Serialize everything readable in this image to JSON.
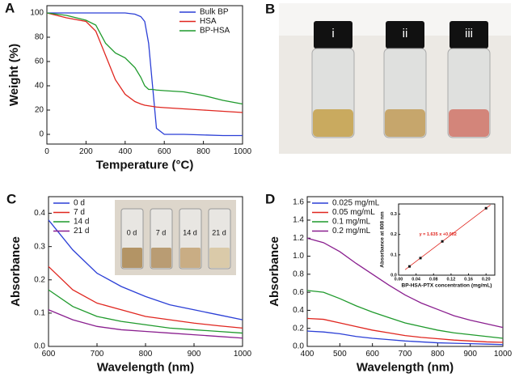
{
  "chart_data": [
    {
      "type": "line",
      "panel": "A",
      "x_label": "Temperature (°C)",
      "y_label": "Weight (%)",
      "x": [
        0,
        100,
        200,
        250,
        300,
        350,
        400,
        450,
        480,
        500,
        520,
        540,
        560,
        600,
        700,
        800,
        900,
        1000
      ],
      "xlim": [
        0,
        1000
      ],
      "xticks": [
        0,
        200,
        400,
        600,
        800,
        1000
      ],
      "ylim": [
        -8,
        106
      ],
      "yticks": [
        0,
        20,
        40,
        60,
        80,
        100
      ],
      "legend": "upper right",
      "series": [
        {
          "name": "Bulk BP",
          "color": "#2b3fd6",
          "values": [
            100,
            100,
            100,
            100,
            100,
            100,
            100,
            99,
            97,
            93,
            75,
            40,
            5,
            0,
            0,
            -0.5,
            -1,
            -1
          ]
        },
        {
          "name": "HSA",
          "color": "#e0261f",
          "values": [
            100,
            96,
            93,
            85,
            65,
            45,
            33,
            27,
            25,
            24,
            23.5,
            23,
            22.5,
            22,
            21,
            20,
            19,
            18
          ]
        },
        {
          "name": "BP-HSA",
          "color": "#1f9a2c",
          "values": [
            100,
            98,
            94,
            90,
            75,
            67,
            63,
            55,
            47,
            40,
            37,
            37,
            36.5,
            36,
            35,
            32,
            28,
            25
          ]
        }
      ]
    },
    {
      "type": "line",
      "panel": "C",
      "x_label": "Wavelength (nm)",
      "y_label": "Absorbance",
      "x": [
        600,
        650,
        700,
        750,
        800,
        850,
        900,
        950,
        1000
      ],
      "xlim": [
        600,
        1000
      ],
      "xticks": [
        600,
        700,
        800,
        900,
        1000
      ],
      "ylim": [
        0,
        0.45
      ],
      "yticks": [
        {
          "value": 0,
          "label": "0.0"
        },
        0.1,
        0.2,
        0.3,
        0.4
      ],
      "legend": "upper left",
      "series": [
        {
          "name": "0 d",
          "color": "#2b3fd6",
          "values": [
            0.38,
            0.29,
            0.22,
            0.18,
            0.15,
            0.125,
            0.11,
            0.095,
            0.08
          ]
        },
        {
          "name": "7 d",
          "color": "#e0261f",
          "values": [
            0.24,
            0.17,
            0.13,
            0.11,
            0.09,
            0.08,
            0.07,
            0.062,
            0.055
          ]
        },
        {
          "name": "14 d",
          "color": "#1f9a2c",
          "values": [
            0.17,
            0.12,
            0.09,
            0.075,
            0.065,
            0.055,
            0.05,
            0.045,
            0.04
          ]
        },
        {
          "name": "21 d",
          "color": "#8a1f8f",
          "values": [
            0.11,
            0.08,
            0.06,
            0.05,
            0.045,
            0.04,
            0.035,
            0.03,
            0.025
          ]
        }
      ]
    },
    {
      "type": "line",
      "panel": "D",
      "x_label": "Wavelength (nm)",
      "y_label": "Absorbance",
      "x": [
        400,
        450,
        500,
        550,
        600,
        650,
        700,
        750,
        800,
        850,
        900,
        950,
        1000
      ],
      "xlim": [
        400,
        1000
      ],
      "xticks": [
        400,
        500,
        600,
        700,
        800,
        900,
        1000
      ],
      "ylim": [
        0,
        1.66
      ],
      "yticks": [
        {
          "value": 0,
          "label": "0.0"
        },
        0.2,
        0.4,
        0.6,
        0.8,
        {
          "value": 1,
          "label": "1.0"
        },
        1.2,
        1.4,
        1.6
      ],
      "legend": "upper left",
      "series": [
        {
          "name": "0.025 mg/mL",
          "color": "#2b3fd6",
          "values": [
            0.17,
            0.16,
            0.14,
            0.11,
            0.09,
            0.075,
            0.06,
            0.05,
            0.04,
            0.035,
            0.03,
            0.025,
            0.02
          ]
        },
        {
          "name": "0.05 mg/mL",
          "color": "#e0261f",
          "values": [
            0.31,
            0.3,
            0.26,
            0.22,
            0.18,
            0.15,
            0.12,
            0.1,
            0.085,
            0.07,
            0.06,
            0.05,
            0.045
          ]
        },
        {
          "name": "0.1 mg/mL",
          "color": "#1f9a2c",
          "values": [
            0.62,
            0.6,
            0.53,
            0.45,
            0.38,
            0.32,
            0.26,
            0.22,
            0.18,
            0.15,
            0.13,
            0.11,
            0.09
          ]
        },
        {
          "name": "0.2 mg/mL",
          "color": "#8a1f8f",
          "values": [
            1.2,
            1.15,
            1.05,
            0.92,
            0.8,
            0.68,
            0.57,
            0.48,
            0.41,
            0.34,
            0.29,
            0.25,
            0.21
          ]
        }
      ]
    },
    {
      "type": "scatter",
      "x_label": "BP-HSA-PTX concentration (mg/mL)",
      "y_label": "Absorbance at 808 nm",
      "annotation": "y = 1.635 x +0.002",
      "x": [
        0.025,
        0.05,
        0.1,
        0.2
      ],
      "values": [
        0.043,
        0.084,
        0.166,
        0.329
      ],
      "color": "#111111",
      "fit_line": {
        "color": "#e0261f",
        "x": [
          0.015,
          0.21
        ],
        "y": [
          0.027,
          0.345
        ]
      },
      "xlim": [
        0,
        0.22
      ],
      "xticks": [
        {
          "value": 0,
          "label": "0.00"
        },
        {
          "value": 0.04,
          "label": "0.04"
        },
        {
          "value": 0.08,
          "label": "0.08"
        },
        {
          "value": 0.12,
          "label": "0.12"
        },
        {
          "value": 0.16,
          "label": "0.16"
        },
        {
          "value": 0.2,
          "label": "0.20"
        }
      ],
      "ylim": [
        0,
        0.35
      ],
      "yticks": [
        {
          "value": 0,
          "label": "0.0"
        },
        0.1,
        0.2,
        0.3
      ]
    }
  ],
  "photos": {
    "panel_b": {
      "panel": "B",
      "vial_labels": [
        "i",
        "ii",
        "iii"
      ]
    },
    "panel_c_inset": {
      "vial_labels": [
        "0 d",
        "7 d",
        "14 d",
        "21 d"
      ]
    }
  }
}
